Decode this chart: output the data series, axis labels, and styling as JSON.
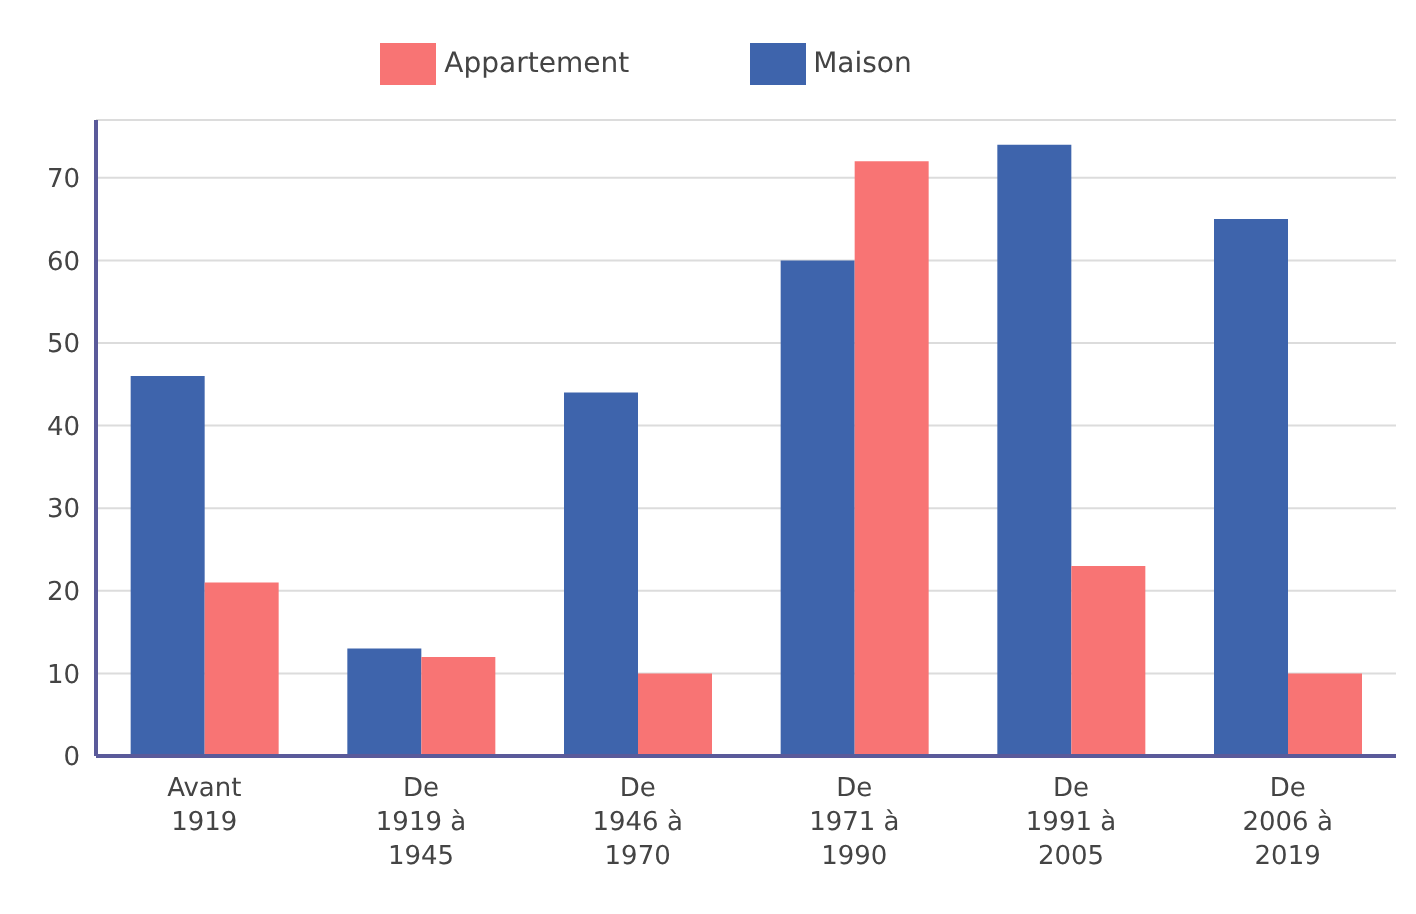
{
  "chart_data": {
    "type": "bar",
    "categories": [
      "Avant 1919",
      "De 1919 à 1945",
      "De 1946 à 1970",
      "De 1971 à 1990",
      "De 1991 à 2005",
      "De 2006 à 2019"
    ],
    "series": [
      {
        "name": "Maison",
        "color": "#3e64ac",
        "values": [
          46,
          13,
          44,
          60,
          74,
          65
        ]
      },
      {
        "name": "Appartement",
        "color": "#f87474",
        "values": [
          21,
          12,
          10,
          72,
          23,
          10
        ]
      }
    ],
    "ylim": [
      0,
      77
    ],
    "yticks": [
      0,
      10,
      20,
      30,
      40,
      50,
      60,
      70
    ],
    "grid": "y",
    "legend": "top"
  }
}
